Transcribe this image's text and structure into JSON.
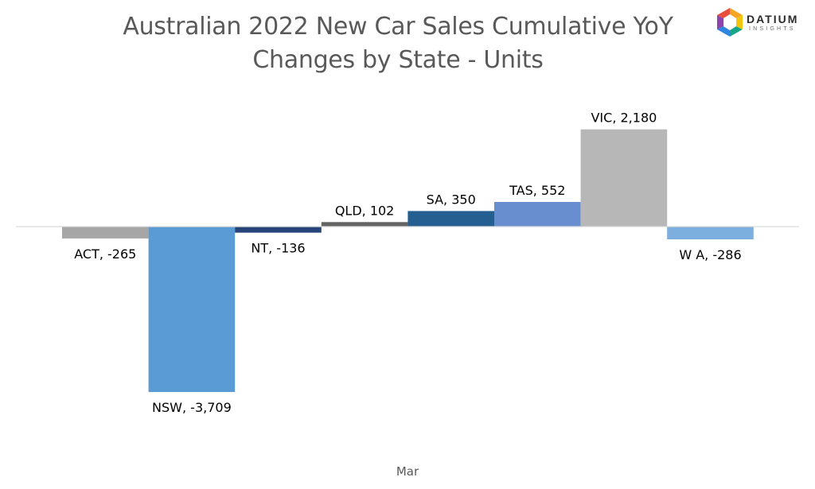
{
  "header": {
    "title_line1": "Australian 2022 New Car Sales Cumulative YoY",
    "title_line2": "Changes by State - Units"
  },
  "logo": {
    "name": "DATIUM",
    "sub": "INSIGHTS",
    "icon": "datium-cube-logo-icon"
  },
  "chart_data": {
    "type": "bar",
    "title": "Australian 2022 New Car Sales Cumulative YoY Changes by State - Units",
    "xlabel": "",
    "ylabel": "",
    "categories": [
      "Mar"
    ],
    "series": [
      {
        "name": "ACT",
        "values": [
          -265
        ],
        "color": "#a6a6a6",
        "label": "ACT, -265"
      },
      {
        "name": "NSW",
        "values": [
          -3709
        ],
        "color": "#5b9bd5",
        "label": "NSW, -3,709"
      },
      {
        "name": "NT",
        "values": [
          -136
        ],
        "color": "#264478",
        "label": "NT, -136"
      },
      {
        "name": "QLD",
        "values": [
          102
        ],
        "color": "#636363",
        "label": "QLD, 102"
      },
      {
        "name": "SA",
        "values": [
          350
        ],
        "color": "#255e91",
        "label": "SA, 350"
      },
      {
        "name": "TAS",
        "values": [
          552
        ],
        "color": "#698ed0",
        "label": "TAS, 552"
      },
      {
        "name": "VIC",
        "values": [
          2180
        ],
        "color": "#b7b7b7",
        "label": "VIC, 2,180"
      },
      {
        "name": "WA",
        "values": [
          -286
        ],
        "color": "#7cafdd",
        "label": "W A, -286"
      }
    ],
    "grid": false,
    "legend": "none"
  }
}
